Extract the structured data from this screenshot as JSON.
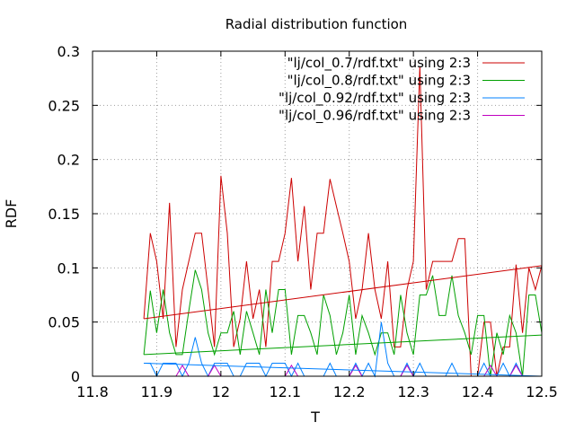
{
  "chart_data": {
    "type": "line",
    "title": "Radial distribution function",
    "xlabel": "T",
    "ylabel": "RDF",
    "xlim": [
      11.8,
      12.5
    ],
    "ylim": [
      0,
      0.3
    ],
    "xticks": [
      11.8,
      11.9,
      12.0,
      12.1,
      12.2,
      12.3,
      12.4,
      12.5
    ],
    "xtick_labels": [
      "11.8",
      "11.9",
      "12",
      "12.1",
      "12.2",
      "12.3",
      "12.4",
      "12.5"
    ],
    "yticks": [
      0,
      0.05,
      0.1,
      0.15,
      0.2,
      0.25,
      0.3
    ],
    "ytick_labels": [
      "0",
      "0.05",
      "0.1",
      "0.15",
      "0.2",
      "0.25",
      "0.3"
    ],
    "grid": true,
    "legend_position": "top-right",
    "series": [
      {
        "name": "\"lj/col_0.7/rdf.txt\" using 2:3",
        "color": "#cc0000",
        "x": [
          11.88,
          11.89,
          11.9,
          11.91,
          11.92,
          11.93,
          11.94,
          11.95,
          11.96,
          11.97,
          11.98,
          11.99,
          12.0,
          12.01,
          12.02,
          12.03,
          12.04,
          12.05,
          12.06,
          12.07,
          12.08,
          12.09,
          12.1,
          12.11,
          12.12,
          12.13,
          12.14,
          12.15,
          12.16,
          12.17,
          12.18,
          12.19,
          12.2,
          12.21,
          12.22,
          12.23,
          12.24,
          12.25,
          12.26,
          12.27,
          12.28,
          12.29,
          12.3,
          12.31,
          12.32,
          12.33,
          12.34,
          12.35,
          12.36,
          12.37,
          12.38,
          12.39,
          12.4,
          12.41,
          12.42,
          12.43,
          12.44,
          12.45,
          12.46,
          12.47,
          12.48,
          12.49,
          12.5
        ],
        "values": [
          0.053,
          0.132,
          0.106,
          0.053,
          0.16,
          0.027,
          0.08,
          0.106,
          0.132,
          0.132,
          0.08,
          0.027,
          0.185,
          0.132,
          0.027,
          0.053,
          0.106,
          0.053,
          0.08,
          0.027,
          0.106,
          0.106,
          0.132,
          0.183,
          0.106,
          0.157,
          0.08,
          0.132,
          0.132,
          0.182,
          0.157,
          0.132,
          0.106,
          0.053,
          0.08,
          0.132,
          0.08,
          0.053,
          0.106,
          0.027,
          0.027,
          0.08,
          0.106,
          0.286,
          0.08,
          0.106,
          0.106,
          0.106,
          0.106,
          0.127,
          0.127,
          0.0,
          0.0,
          0.05,
          0.05,
          0.0,
          0.027,
          0.027,
          0.103,
          0.04,
          0.1,
          0.08,
          0.102
        ]
      },
      {
        "name": "\"lj/col_0.8/rdf.txt\" using 2:3",
        "color": "#00a000",
        "x": [
          11.88,
          11.89,
          11.9,
          11.91,
          11.92,
          11.93,
          11.94,
          11.95,
          11.96,
          11.97,
          11.98,
          11.99,
          12.0,
          12.01,
          12.02,
          12.03,
          12.04,
          12.05,
          12.06,
          12.07,
          12.08,
          12.09,
          12.1,
          12.11,
          12.12,
          12.13,
          12.14,
          12.15,
          12.16,
          12.17,
          12.18,
          12.19,
          12.2,
          12.21,
          12.22,
          12.23,
          12.24,
          12.25,
          12.26,
          12.27,
          12.28,
          12.29,
          12.3,
          12.31,
          12.32,
          12.33,
          12.34,
          12.35,
          12.36,
          12.37,
          12.38,
          12.39,
          12.4,
          12.41,
          12.42,
          12.43,
          12.44,
          12.45,
          12.46,
          12.47,
          12.48,
          12.49,
          12.5
        ],
        "values": [
          0.02,
          0.079,
          0.04,
          0.08,
          0.04,
          0.02,
          0.02,
          0.06,
          0.098,
          0.08,
          0.04,
          0.02,
          0.04,
          0.04,
          0.06,
          0.02,
          0.06,
          0.04,
          0.02,
          0.08,
          0.04,
          0.08,
          0.08,
          0.02,
          0.056,
          0.056,
          0.04,
          0.02,
          0.075,
          0.056,
          0.02,
          0.04,
          0.075,
          0.02,
          0.056,
          0.04,
          0.02,
          0.04,
          0.04,
          0.02,
          0.075,
          0.04,
          0.02,
          0.075,
          0.075,
          0.093,
          0.056,
          0.056,
          0.093,
          0.056,
          0.04,
          0.02,
          0.056,
          0.056,
          0.0,
          0.04,
          0.02,
          0.056,
          0.04,
          0.0,
          0.075,
          0.075,
          0.04
        ]
      },
      {
        "name": "\"lj/col_0.92/rdf.txt\" using 2:3",
        "color": "#0080ff",
        "x": [
          11.88,
          11.89,
          11.9,
          11.91,
          11.92,
          11.93,
          11.94,
          11.95,
          11.96,
          11.97,
          11.98,
          11.99,
          12.0,
          12.01,
          12.02,
          12.03,
          12.04,
          12.05,
          12.06,
          12.07,
          12.08,
          12.09,
          12.1,
          12.11,
          12.12,
          12.13,
          12.14,
          12.15,
          12.16,
          12.17,
          12.18,
          12.19,
          12.2,
          12.21,
          12.22,
          12.23,
          12.24,
          12.25,
          12.26,
          12.27,
          12.28,
          12.29,
          12.3,
          12.31,
          12.32,
          12.33,
          12.34,
          12.35,
          12.36,
          12.37,
          12.38,
          12.39,
          12.4,
          12.41,
          12.42,
          12.43,
          12.44,
          12.45,
          12.46,
          12.47,
          12.48,
          12.49,
          12.5
        ],
        "values": [
          0.012,
          0.012,
          0.0,
          0.012,
          0.012,
          0.012,
          0.0,
          0.012,
          0.036,
          0.012,
          0.0,
          0.012,
          0.012,
          0.012,
          0.0,
          0.0,
          0.012,
          0.012,
          0.012,
          0.0,
          0.012,
          0.012,
          0.012,
          0.0,
          0.012,
          0.0,
          0.0,
          0.0,
          0.0,
          0.012,
          0.0,
          0.0,
          0.0,
          0.012,
          0.0,
          0.012,
          0.0,
          0.05,
          0.012,
          0.0,
          0.0,
          0.012,
          0.0,
          0.012,
          0.0,
          0.0,
          0.0,
          0.0,
          0.012,
          0.0,
          0.0,
          0.0,
          0.0,
          0.012,
          0.0,
          0.0,
          0.012,
          0.0,
          0.012,
          0.0,
          0.0,
          0.0,
          0.0
        ]
      },
      {
        "name": "\"lj/col_0.96/rdf.txt\" using 2:3",
        "color": "#c000c0",
        "x": [
          11.88,
          11.89,
          11.9,
          11.91,
          11.92,
          11.93,
          11.94,
          11.95,
          11.96,
          11.97,
          11.98,
          11.99,
          12.0,
          12.01,
          12.02,
          12.03,
          12.04,
          12.05,
          12.06,
          12.07,
          12.08,
          12.09,
          12.1,
          12.11,
          12.12,
          12.13,
          12.14,
          12.15,
          12.16,
          12.17,
          12.18,
          12.19,
          12.2,
          12.21,
          12.22,
          12.23,
          12.24,
          12.25,
          12.26,
          12.27,
          12.28,
          12.29,
          12.3,
          12.31,
          12.32,
          12.33,
          12.34,
          12.35,
          12.36,
          12.37,
          12.38,
          12.39,
          12.4,
          12.41,
          12.42,
          12.43,
          12.44,
          12.45,
          12.46,
          12.47,
          12.48,
          12.49,
          12.5
        ],
        "values": [
          0.0,
          0.0,
          0.0,
          0.0,
          0.0,
          0.0,
          0.01,
          0.0,
          0.0,
          0.0,
          0.0,
          0.01,
          0.0,
          0.0,
          0.0,
          0.0,
          0.0,
          0.0,
          0.0,
          0.0,
          0.0,
          0.0,
          0.0,
          0.01,
          0.0,
          0.0,
          0.0,
          0.0,
          0.0,
          0.0,
          0.0,
          0.0,
          0.0,
          0.01,
          0.0,
          0.0,
          0.0,
          0.0,
          0.0,
          0.0,
          0.0,
          0.01,
          0.0,
          0.0,
          0.0,
          0.0,
          0.0,
          0.0,
          0.0,
          0.0,
          0.0,
          0.0,
          0.0,
          0.0,
          0.01,
          0.0,
          0.0,
          0.0,
          0.01,
          0.0,
          0.0,
          0.0,
          0.0
        ]
      }
    ],
    "trend_lines": [
      {
        "series": "\"lj/col_0.7/rdf.txt\" using 2:3",
        "color": "#cc0000",
        "x": [
          11.88,
          12.5
        ],
        "y": [
          0.053,
          0.102
        ]
      },
      {
        "series": "\"lj/col_0.8/rdf.txt\" using 2:3",
        "color": "#00a000",
        "x": [
          11.88,
          12.5
        ],
        "y": [
          0.02,
          0.038
        ]
      },
      {
        "series": "\"lj/col_0.92/rdf.txt\" using 2:3",
        "color": "#0080ff",
        "x": [
          11.88,
          12.5
        ],
        "y": [
          0.012,
          0.0
        ]
      }
    ]
  }
}
